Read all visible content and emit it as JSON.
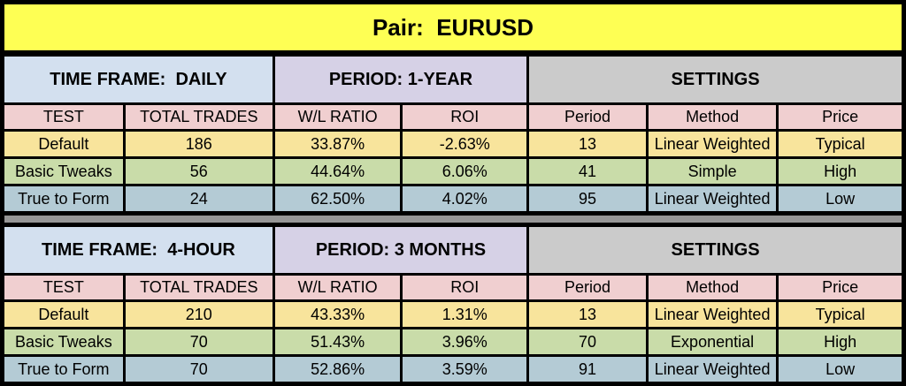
{
  "banner": {
    "title": "Pair:  EURUSD"
  },
  "columns": [
    "TEST",
    "TOTAL TRADES",
    "W/L RATIO",
    "ROI",
    "Period",
    "Method",
    "Price"
  ],
  "sections": [
    {
      "time_frame": "TIME FRAME:  DAILY",
      "period": "PERIOD: 1-YEAR",
      "settings": "SETTINGS",
      "rows": [
        {
          "test": "Default",
          "total_trades": "186",
          "wl_ratio": "33.87%",
          "roi": "-2.63%",
          "period": "13",
          "method": "Linear Weighted",
          "price": "Typical"
        },
        {
          "test": "Basic Tweaks",
          "total_trades": "56",
          "wl_ratio": "44.64%",
          "roi": "6.06%",
          "period": "41",
          "method": "Simple",
          "price": "High"
        },
        {
          "test": "True to Form",
          "total_trades": "24",
          "wl_ratio": "62.50%",
          "roi": "4.02%",
          "period": "95",
          "method": "Linear Weighted",
          "price": "Low"
        }
      ]
    },
    {
      "time_frame": "TIME FRAME:  4-HOUR",
      "period": "PERIOD: 3 MONTHS",
      "settings": "SETTINGS",
      "rows": [
        {
          "test": "Default",
          "total_trades": "210",
          "wl_ratio": "43.33%",
          "roi": "1.31%",
          "period": "13",
          "method": "Linear Weighted",
          "price": "Typical"
        },
        {
          "test": "Basic Tweaks",
          "total_trades": "70",
          "wl_ratio": "51.43%",
          "roi": "3.96%",
          "period": "70",
          "method": "Exponential",
          "price": "High"
        },
        {
          "test": "True to Form",
          "total_trades": "70",
          "wl_ratio": "52.86%",
          "roi": "3.59%",
          "period": "91",
          "method": "Linear Weighted",
          "price": "Low"
        }
      ]
    }
  ],
  "colors": {
    "banner_yellow": "#FEFF54",
    "band_blue": "#D3E0EF",
    "band_purple": "#D6D1E6",
    "band_gray": "#CBCBCB",
    "header_pink": "#F0CFD0",
    "row_yellow": "#F8E49C",
    "row_green": "#C9DCA9",
    "row_blue": "#B4CBD5",
    "divider_gray": "#969696",
    "border_black": "#000000"
  }
}
